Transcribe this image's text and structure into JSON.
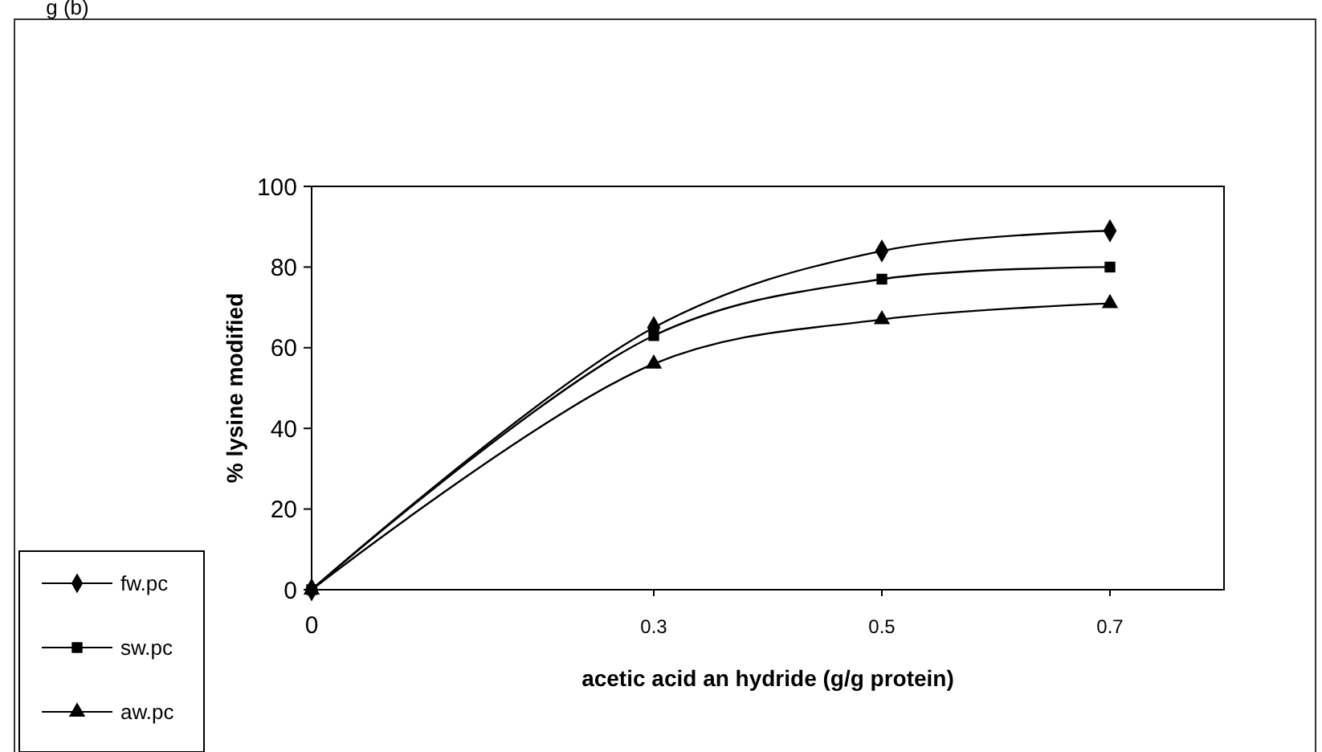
{
  "chart_data": {
    "type": "line",
    "title": "g (b)",
    "xlabel": "acetic acid an hydride (g/g protein)",
    "ylabel": "% lysine modified",
    "x": [
      0,
      0.3,
      0.5,
      0.7
    ],
    "series": [
      {
        "name": "fw.pc",
        "color": "#000000",
        "marker": "diamond",
        "values": [
          0,
          65,
          84,
          89
        ]
      },
      {
        "name": "sw.pc",
        "color": "#000000",
        "marker": "square",
        "values": [
          0,
          63,
          77,
          80
        ]
      },
      {
        "name": "aw.pc",
        "color": "#000000",
        "marker": "triangle",
        "values": [
          0,
          56,
          67,
          71
        ]
      }
    ],
    "xlim": [
      0,
      0.8
    ],
    "xticks": [
      0,
      0.3,
      0.5,
      0.7
    ],
    "ylim": [
      0,
      100
    ],
    "yticks": [
      0,
      20,
      40,
      60,
      80,
      100
    ],
    "grid": false,
    "legend": "bottom left",
    "line_style": "solid"
  }
}
